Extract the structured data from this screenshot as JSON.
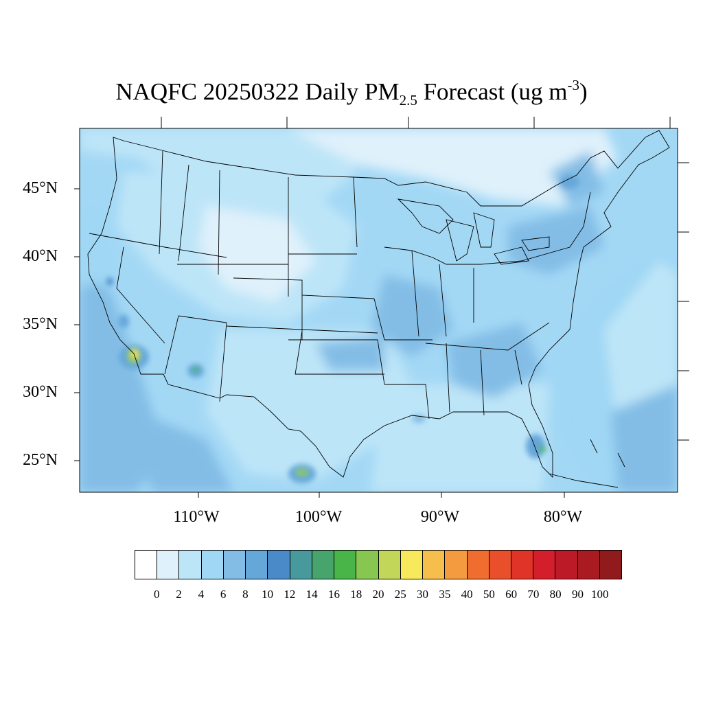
{
  "title": {
    "prefix": "NAQFC 20250322 Daily PM",
    "subscript": "2.5",
    "middle": " Forecast (ug m",
    "superscript": "-3",
    "suffix": ")"
  },
  "lat_labels": [
    "45°N",
    "40°N",
    "35°N",
    "30°N",
    "25°N"
  ],
  "lon_labels": [
    "110°W",
    "100°W",
    "90°W",
    "80°W"
  ],
  "colorbar": {
    "labels": [
      "0",
      "2",
      "4",
      "6",
      "8",
      "10",
      "12",
      "14",
      "16",
      "18",
      "20",
      "25",
      "30",
      "35",
      "40",
      "50",
      "60",
      "70",
      "80",
      "90",
      "100"
    ],
    "colors": [
      "#ffffff",
      "#dff1fb",
      "#bde5f8",
      "#9fd7f4",
      "#83bde6",
      "#66a7da",
      "#4a8ac9",
      "#48999c",
      "#46a46c",
      "#49b448",
      "#88c652",
      "#c2d65a",
      "#f8e95c",
      "#f6bf4d",
      "#f49b40",
      "#f06c2f",
      "#ea4f2c",
      "#e13428",
      "#d21f2b",
      "#bd1a28",
      "#a91b21",
      "#911a1c"
    ],
    "background": "#9fd7f4",
    "ocean": "#a3d8f5"
  }
}
